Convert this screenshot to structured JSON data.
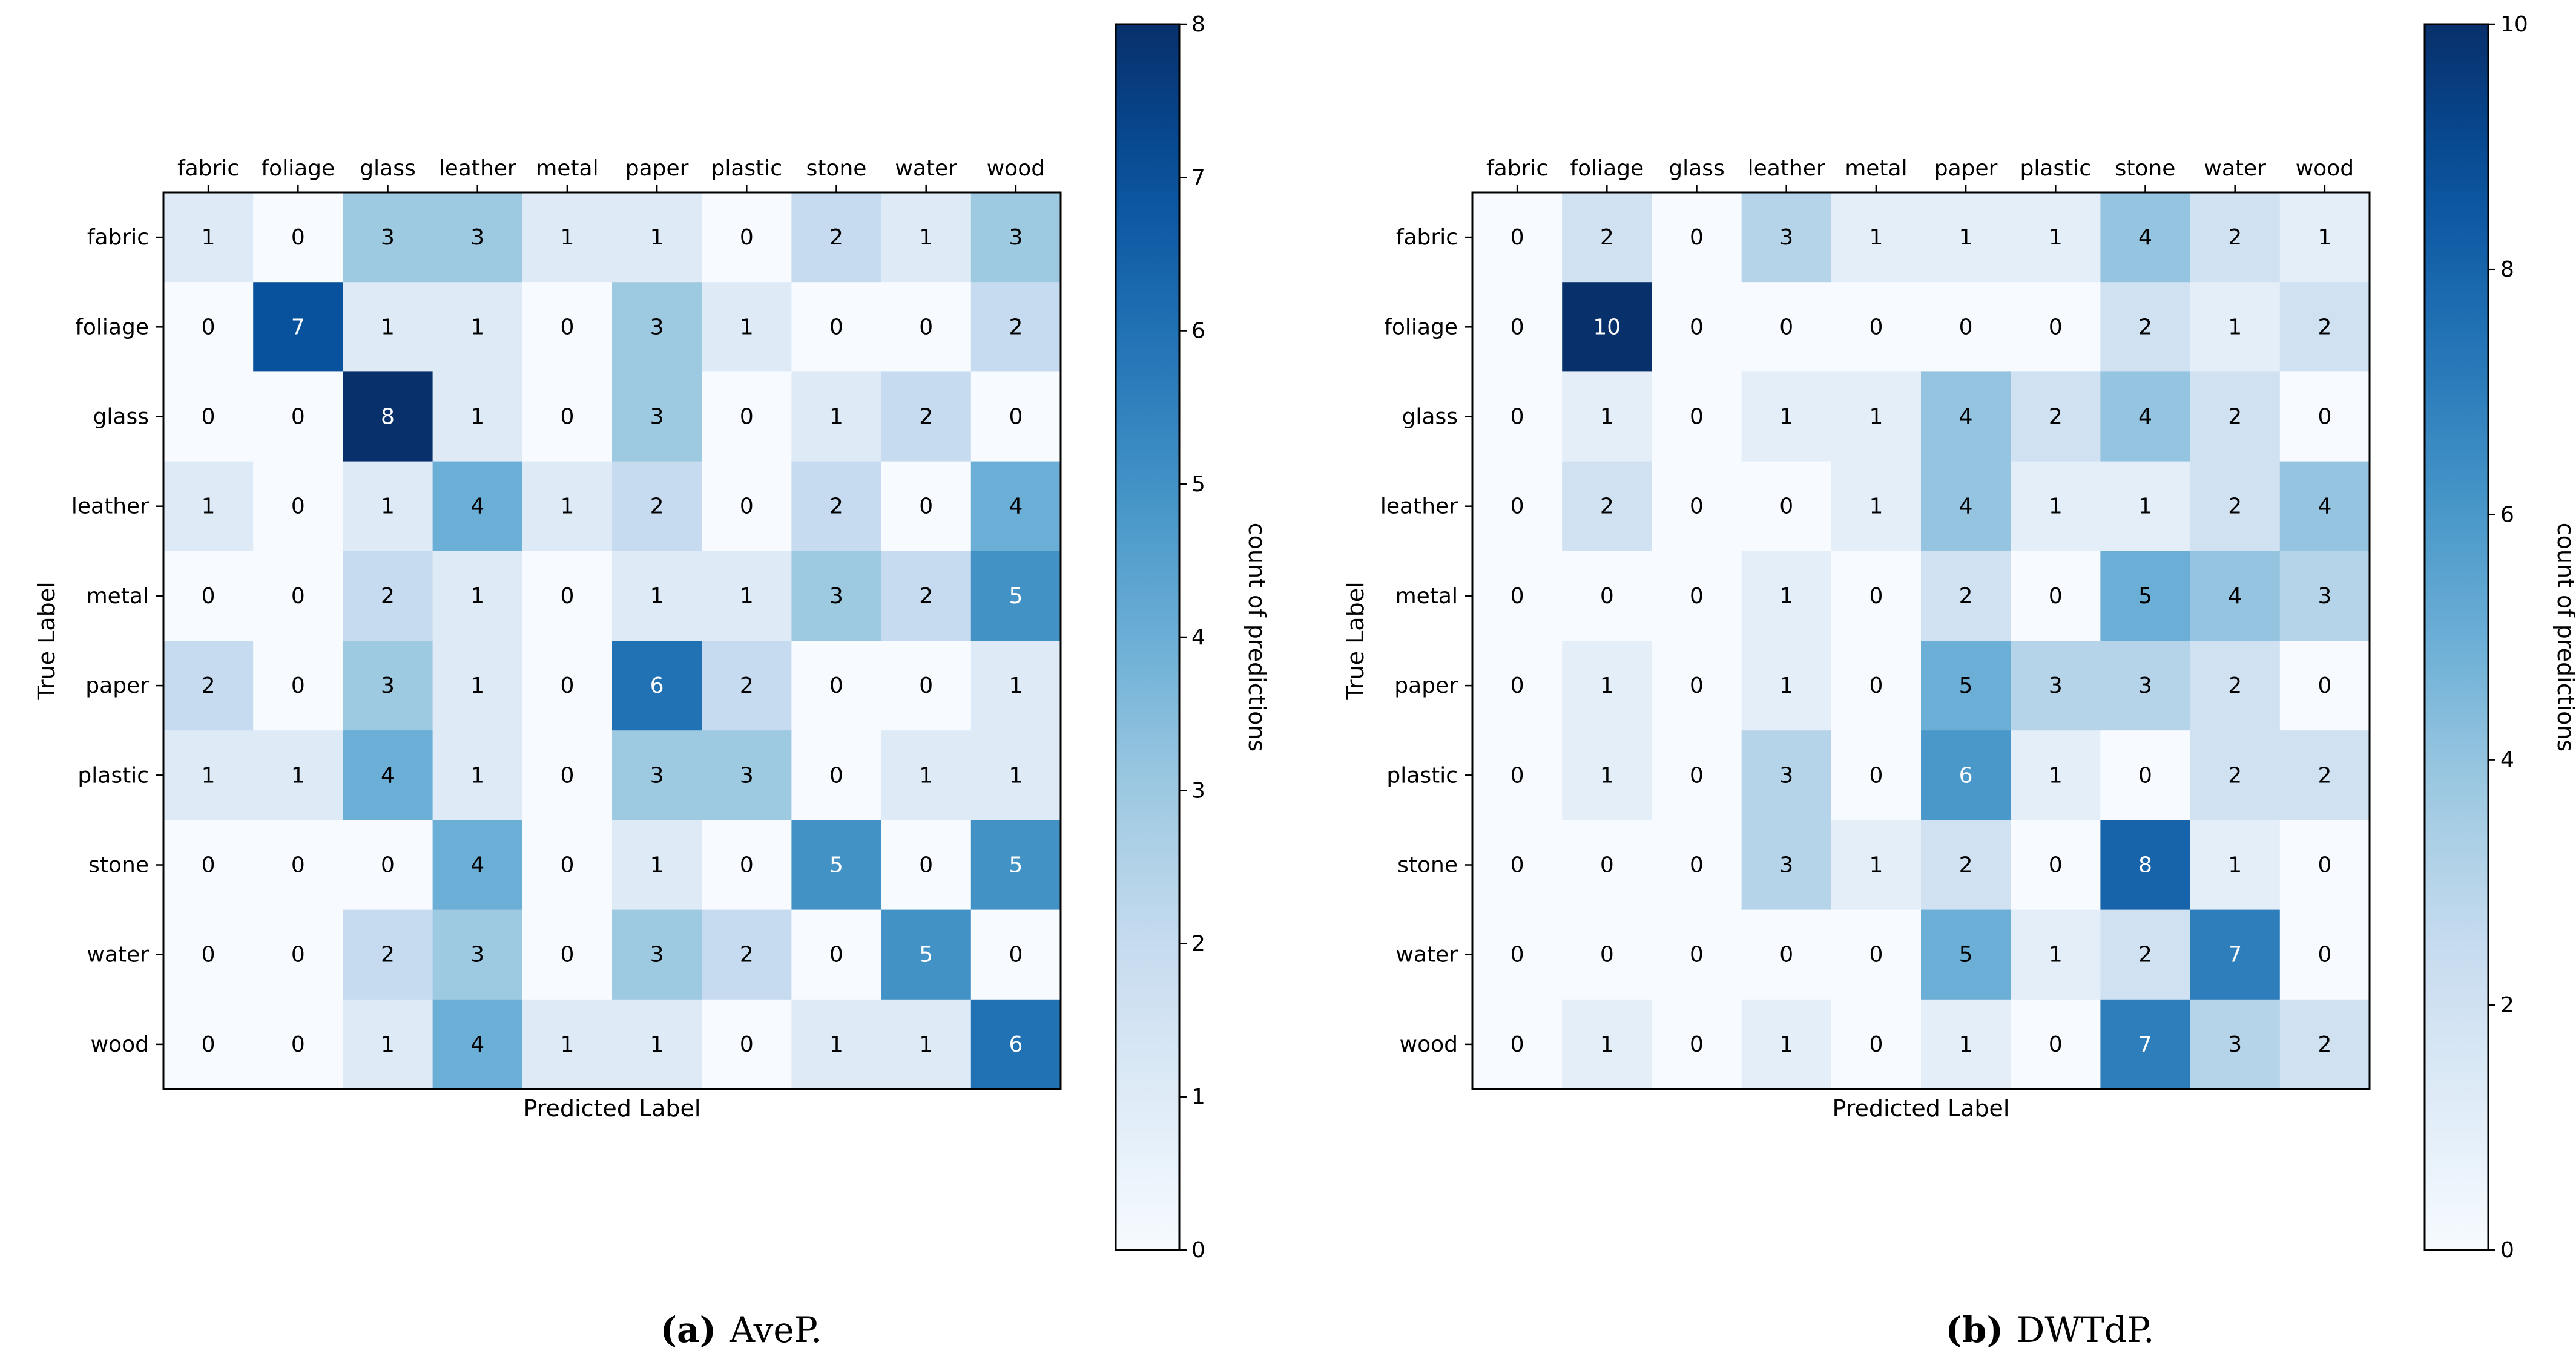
{
  "chart_data": [
    {
      "type": "heatmap",
      "title": "",
      "caption_label": "(a)",
      "caption_text": "AveP.",
      "xlabel": "Predicted Label",
      "ylabel": "True Label",
      "categories": [
        "fabric",
        "foliage",
        "glass",
        "leather",
        "metal",
        "paper",
        "plastic",
        "stone",
        "water",
        "wood"
      ],
      "matrix": [
        [
          1,
          0,
          3,
          3,
          1,
          1,
          0,
          2,
          1,
          3
        ],
        [
          0,
          7,
          1,
          1,
          0,
          3,
          1,
          0,
          0,
          2
        ],
        [
          0,
          0,
          8,
          1,
          0,
          3,
          0,
          1,
          2,
          0
        ],
        [
          1,
          0,
          1,
          4,
          1,
          2,
          0,
          2,
          0,
          4
        ],
        [
          0,
          0,
          2,
          1,
          0,
          1,
          1,
          3,
          2,
          5
        ],
        [
          2,
          0,
          3,
          1,
          0,
          6,
          2,
          0,
          0,
          1
        ],
        [
          1,
          1,
          4,
          1,
          0,
          3,
          3,
          0,
          1,
          1
        ],
        [
          0,
          0,
          0,
          4,
          0,
          1,
          0,
          5,
          0,
          5
        ],
        [
          0,
          0,
          2,
          3,
          0,
          3,
          2,
          0,
          5,
          0
        ],
        [
          0,
          0,
          1,
          4,
          1,
          1,
          0,
          1,
          1,
          6
        ]
      ],
      "colorbar": {
        "label": "count of predictions",
        "min": 0,
        "max": 8,
        "ticks": [
          "0",
          "1",
          "2",
          "3",
          "4",
          "5",
          "6",
          "7",
          "8"
        ]
      }
    },
    {
      "type": "heatmap",
      "title": "",
      "caption_label": "(b)",
      "caption_text": "DWTdP.",
      "xlabel": "Predicted Label",
      "ylabel": "True Label",
      "categories": [
        "fabric",
        "foliage",
        "glass",
        "leather",
        "metal",
        "paper",
        "plastic",
        "stone",
        "water",
        "wood"
      ],
      "matrix": [
        [
          0,
          2,
          0,
          3,
          1,
          1,
          1,
          4,
          2,
          1
        ],
        [
          0,
          10,
          0,
          0,
          0,
          0,
          0,
          2,
          1,
          2
        ],
        [
          0,
          1,
          0,
          1,
          1,
          4,
          2,
          4,
          2,
          0
        ],
        [
          0,
          2,
          0,
          0,
          1,
          4,
          1,
          1,
          2,
          4
        ],
        [
          0,
          0,
          0,
          1,
          0,
          2,
          0,
          5,
          4,
          3
        ],
        [
          0,
          1,
          0,
          1,
          0,
          5,
          3,
          3,
          2,
          0
        ],
        [
          0,
          1,
          0,
          3,
          0,
          6,
          1,
          0,
          2,
          2
        ],
        [
          0,
          0,
          0,
          3,
          1,
          2,
          0,
          8,
          1,
          0
        ],
        [
          0,
          0,
          0,
          0,
          0,
          5,
          1,
          2,
          7,
          0
        ],
        [
          0,
          1,
          0,
          1,
          0,
          1,
          0,
          7,
          3,
          2
        ]
      ],
      "colorbar": {
        "label": "count of predictions",
        "min": 0,
        "max": 10,
        "ticks": [
          "0",
          "2",
          "4",
          "6",
          "8",
          "10"
        ]
      }
    }
  ]
}
